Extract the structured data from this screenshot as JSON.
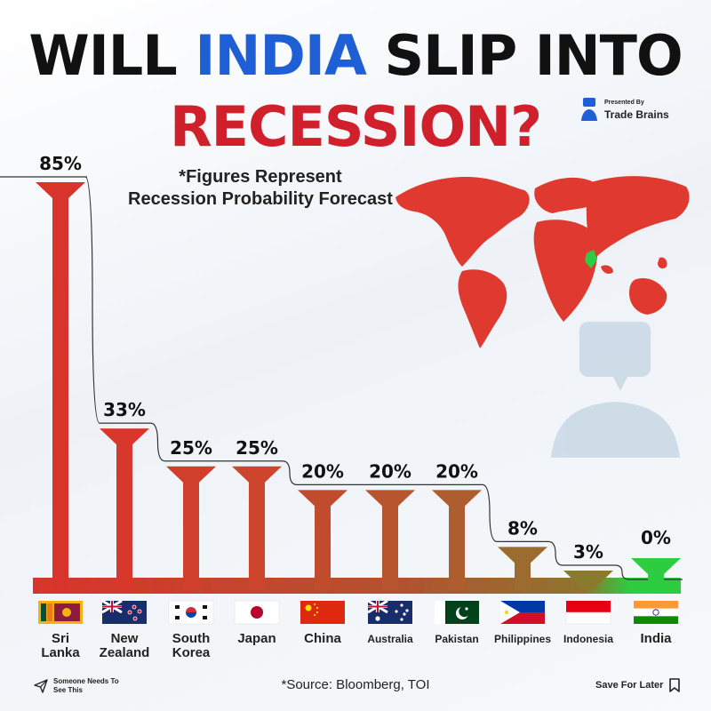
{
  "header": {
    "title_part1": "WILL",
    "title_highlight": "INDIA",
    "title_part2": "SLIP INTO",
    "title_line2": "RECESSION?",
    "highlight_color": "#1f5fd6",
    "title_red": "#d0202b"
  },
  "brand": {
    "presented": "Presented By",
    "name": "Trade Brains"
  },
  "subtitle": {
    "line1": "*Figures Represent",
    "line2": "Recession Probability Forecast"
  },
  "chart_data": {
    "type": "bar",
    "categories": [
      "Sri Lanka",
      "New Zealand",
      "South Korea",
      "Japan",
      "China",
      "Australia",
      "Pakistan",
      "Philippines",
      "Indonesia",
      "India"
    ],
    "category_lines": [
      [
        "Sri",
        "Lanka"
      ],
      [
        "New",
        "Zealand"
      ],
      [
        "South",
        "Korea"
      ],
      [
        "Japan"
      ],
      [
        "China"
      ],
      [
        "Australia"
      ],
      [
        "Pakistan"
      ],
      [
        "Philippines"
      ],
      [
        "Indonesia"
      ],
      [
        "India"
      ]
    ],
    "values": [
      85,
      33,
      25,
      25,
      20,
      20,
      20,
      8,
      3,
      0
    ],
    "labels": [
      "85%",
      "33%",
      "25%",
      "25%",
      "20%",
      "20%",
      "20%",
      "8%",
      "3%",
      "0%"
    ],
    "flags": [
      "sri-lanka-flag",
      "new-zealand-flag",
      "south-korea-flag",
      "japan-flag",
      "china-flag",
      "australia-flag",
      "pakistan-flag",
      "philippines-flag",
      "indonesia-flag",
      "india-flag"
    ],
    "unit": "%",
    "colors": {
      "high": "#d6332a",
      "mid": "#8a7a2e",
      "zero": "#2ecc40"
    }
  },
  "footer": {
    "source": "*Source: Bloomberg, TOI",
    "share_label": "Someone Needs To See This",
    "save_label": "Save For Later"
  }
}
